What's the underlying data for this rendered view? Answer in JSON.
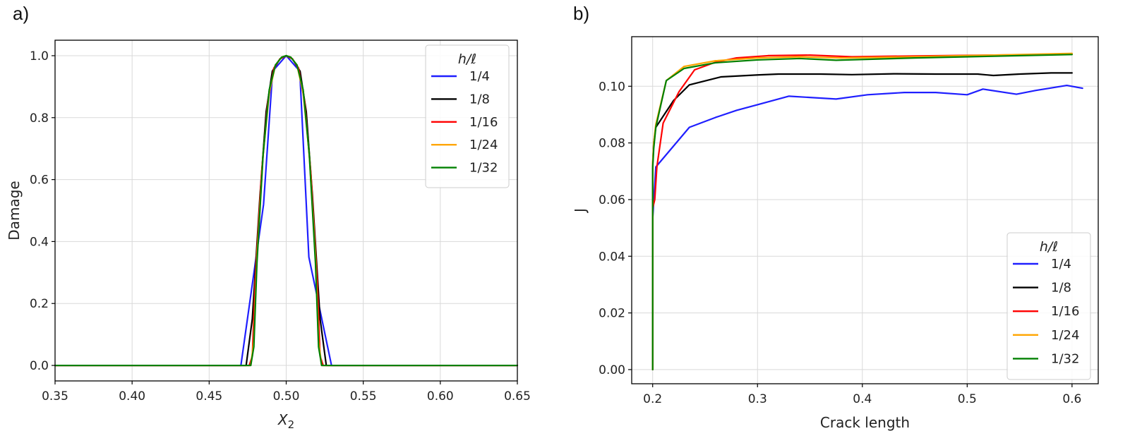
{
  "chart_data": [
    {
      "panel_label": "a)",
      "type": "line",
      "title": "",
      "xlabel": "X",
      "xlabel_subscript": "2",
      "ylabel": "Damage",
      "xlim": [
        0.35,
        0.65
      ],
      "ylim": [
        -0.05,
        1.05
      ],
      "xticks": [
        0.35,
        0.4,
        0.45,
        0.5,
        0.55,
        0.6,
        0.65
      ],
      "xtick_labels": [
        "0.35",
        "0.40",
        "0.45",
        "0.50",
        "0.55",
        "0.60",
        "0.65"
      ],
      "yticks": [
        0.0,
        0.2,
        0.4,
        0.6,
        0.8,
        1.0
      ],
      "ytick_labels": [
        "0.0",
        "0.2",
        "0.4",
        "0.6",
        "0.8",
        "1.0"
      ],
      "grid": true,
      "legend": {
        "title": "h/ℓ",
        "placement": "top-right"
      },
      "series": [
        {
          "name": "1/4",
          "color": "#1f1fff",
          "x": [
            0.35,
            0.4706,
            0.4853,
            0.4912,
            0.5,
            0.5088,
            0.5147,
            0.5294,
            0.65
          ],
          "y": [
            0.0,
            0.0,
            0.52,
            0.95,
            1.0,
            0.95,
            0.35,
            0.0,
            0.0
          ]
        },
        {
          "name": "1/8",
          "color": "#000000",
          "x": [
            0.35,
            0.474,
            0.478,
            0.483,
            0.487,
            0.491,
            0.496,
            0.5,
            0.504,
            0.509,
            0.513,
            0.517,
            0.522,
            0.526,
            0.65
          ],
          "y": [
            0.0,
            0.0,
            0.15,
            0.55,
            0.82,
            0.95,
            0.99,
            1.0,
            0.99,
            0.95,
            0.82,
            0.55,
            0.15,
            0.0,
            0.0
          ]
        },
        {
          "name": "1/16",
          "color": "#ff0000",
          "x": [
            0.35,
            0.476,
            0.478,
            0.48,
            0.484,
            0.488,
            0.492,
            0.496,
            0.5,
            0.504,
            0.508,
            0.512,
            0.516,
            0.52,
            0.522,
            0.524,
            0.65
          ],
          "y": [
            0.0,
            0.0,
            0.03,
            0.28,
            0.62,
            0.85,
            0.96,
            0.99,
            1.0,
            0.99,
            0.96,
            0.85,
            0.62,
            0.28,
            0.03,
            0.0,
            0.0
          ]
        },
        {
          "name": "1/24",
          "color": "#ffa500",
          "x": [
            0.35,
            0.477,
            0.479,
            0.481,
            0.485,
            0.489,
            0.493,
            0.497,
            0.5,
            0.503,
            0.507,
            0.511,
            0.515,
            0.519,
            0.521,
            0.523,
            0.65
          ],
          "y": [
            0.0,
            0.0,
            0.08,
            0.35,
            0.68,
            0.88,
            0.97,
            0.995,
            1.0,
            0.995,
            0.97,
            0.88,
            0.68,
            0.35,
            0.08,
            0.0,
            0.0
          ]
        },
        {
          "name": "1/32",
          "color": "#008000",
          "x": [
            0.35,
            0.477,
            0.479,
            0.481,
            0.485,
            0.489,
            0.493,
            0.497,
            0.5,
            0.503,
            0.507,
            0.511,
            0.515,
            0.519,
            0.521,
            0.523,
            0.65
          ],
          "y": [
            0.0,
            0.0,
            0.06,
            0.33,
            0.68,
            0.89,
            0.97,
            0.995,
            1.0,
            0.995,
            0.97,
            0.89,
            0.68,
            0.33,
            0.06,
            0.0,
            0.0
          ]
        }
      ]
    },
    {
      "panel_label": "b)",
      "type": "line",
      "title": "",
      "xlabel": "Crack length",
      "ylabel": "J",
      "xlim": [
        0.18,
        0.625
      ],
      "ylim": [
        -0.005,
        0.1175
      ],
      "xticks": [
        0.2,
        0.3,
        0.4,
        0.5,
        0.6
      ],
      "xtick_labels": [
        "0.2",
        "0.3",
        "0.4",
        "0.5",
        "0.6"
      ],
      "yticks": [
        0.0,
        0.02,
        0.04,
        0.06,
        0.08,
        0.1
      ],
      "ytick_labels": [
        "0.00",
        "0.02",
        "0.04",
        "0.06",
        "0.08",
        "0.10"
      ],
      "grid": true,
      "legend": {
        "title": "h/ℓ",
        "placement": "bottom-right"
      },
      "series": [
        {
          "name": "1/4",
          "color": "#1f1fff",
          "x": [
            0.2,
            0.2,
            0.203,
            0.235,
            0.26,
            0.28,
            0.3,
            0.33,
            0.375,
            0.405,
            0.44,
            0.47,
            0.5,
            0.515,
            0.547,
            0.565,
            0.595,
            0.61
          ],
          "y": [
            0.0,
            0.053,
            0.0715,
            0.0855,
            0.089,
            0.0915,
            0.0935,
            0.0965,
            0.0955,
            0.097,
            0.0978,
            0.0978,
            0.097,
            0.099,
            0.0972,
            0.0985,
            0.1003,
            0.0993
          ]
        },
        {
          "name": "1/8",
          "color": "#000000",
          "x": [
            0.2,
            0.2,
            0.201,
            0.203,
            0.22,
            0.235,
            0.265,
            0.3,
            0.32,
            0.36,
            0.39,
            0.43,
            0.47,
            0.51,
            0.525,
            0.55,
            0.58,
            0.6
          ],
          "y": [
            0.0,
            0.072,
            0.08,
            0.0855,
            0.095,
            0.1005,
            0.1033,
            0.104,
            0.1043,
            0.1043,
            0.1041,
            0.1044,
            0.1043,
            0.1043,
            0.1038,
            0.1043,
            0.1047,
            0.1047
          ]
        },
        {
          "name": "1/16",
          "color": "#ff0000",
          "x": [
            0.2,
            0.2,
            0.202,
            0.204,
            0.21,
            0.225,
            0.24,
            0.26,
            0.28,
            0.31,
            0.35,
            0.39,
            0.45,
            0.5,
            0.55,
            0.59,
            0.6
          ],
          "y": [
            0.0,
            0.057,
            0.06,
            0.0715,
            0.087,
            0.098,
            0.1058,
            0.1085,
            0.11,
            0.1108,
            0.111,
            0.1104,
            0.1107,
            0.1109,
            0.1111,
            0.1113,
            0.1113
          ]
        },
        {
          "name": "1/24",
          "color": "#ffa500",
          "x": [
            0.2,
            0.2,
            0.201,
            0.203,
            0.213,
            0.23,
            0.26,
            0.3,
            0.34,
            0.38,
            0.45,
            0.5,
            0.55,
            0.6
          ],
          "y": [
            0.0,
            0.073,
            0.08,
            0.0865,
            0.102,
            0.107,
            0.109,
            0.11,
            0.1104,
            0.11,
            0.1104,
            0.1108,
            0.1112,
            0.1116
          ]
        },
        {
          "name": "1/32",
          "color": "#008000",
          "x": [
            0.2,
            0.2,
            0.201,
            0.203,
            0.213,
            0.23,
            0.26,
            0.3,
            0.34,
            0.375,
            0.45,
            0.5,
            0.55,
            0.6
          ],
          "y": [
            0.0,
            0.071,
            0.078,
            0.0855,
            0.102,
            0.1063,
            0.1083,
            0.1093,
            0.1098,
            0.1092,
            0.11,
            0.1104,
            0.1108,
            0.1112
          ]
        }
      ]
    }
  ]
}
